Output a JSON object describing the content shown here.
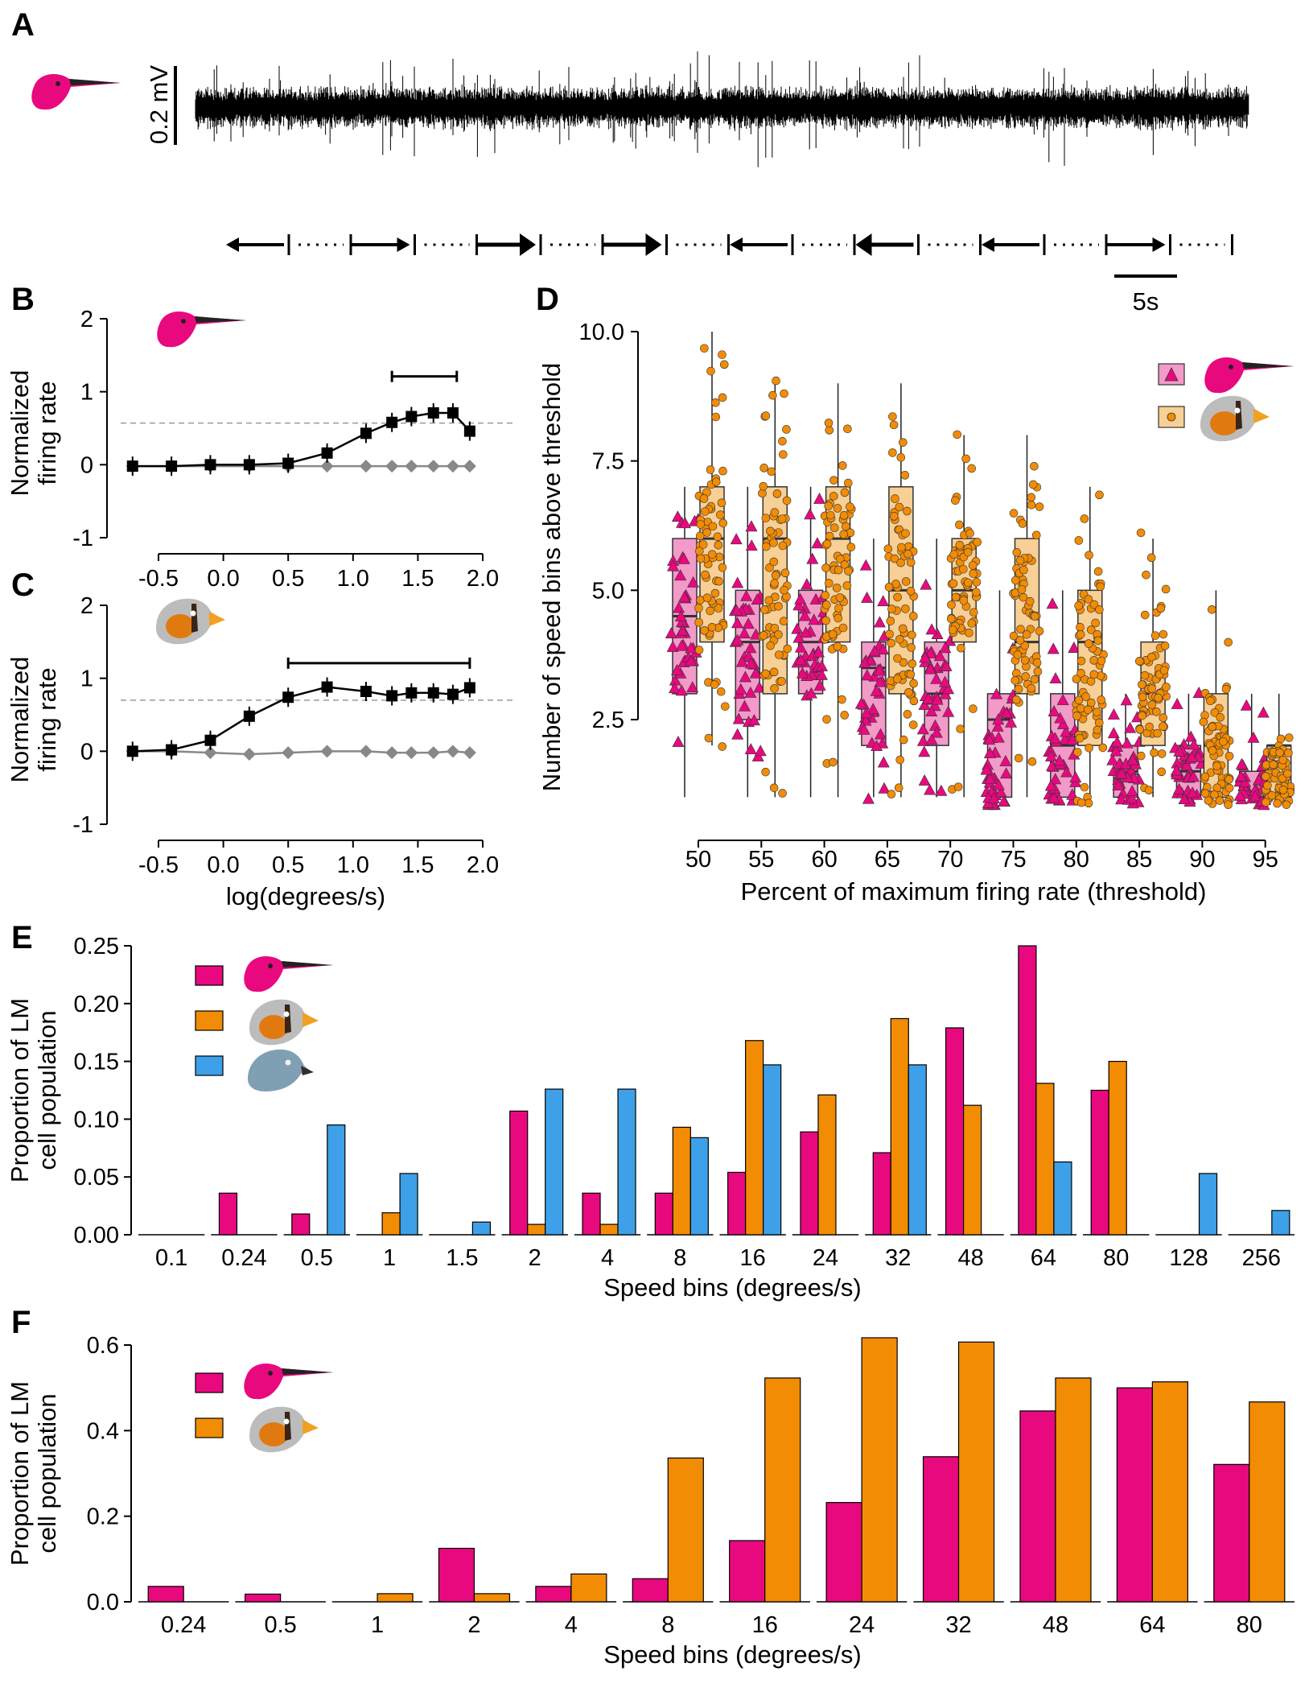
{
  "colors": {
    "hummingbird": "#e8097f",
    "finch": "#f28c05",
    "pigeon": "#3ea0e8",
    "hummingbird_box": "#f29ac8",
    "finch_box": "#f8cf94",
    "black": "#000000",
    "gray": "#888888"
  },
  "icons": {
    "hummingbird": "hummingbird-head-icon",
    "finch": "zebra-finch-head-icon",
    "pigeon": "pigeon-head-icon"
  },
  "chart_data": [
    {
      "panel": "A",
      "type": "line",
      "description_scale_y": "0.2 mV",
      "description_scale_x": "5s",
      "stimulus_directions": [
        "left",
        "right",
        "right",
        "right",
        "left",
        "left",
        "left",
        "right"
      ],
      "stimulus_speeds_relative": [
        1,
        1,
        2,
        2,
        1,
        2,
        1,
        1
      ]
    },
    {
      "panel": "B",
      "type": "line",
      "ylabel": "Normalized\nfiring rate",
      "xlabel": "",
      "xlim": [
        -0.75,
        2.0
      ],
      "ylim": [
        -1,
        2
      ],
      "xticks": [
        "-0.5",
        "0.0",
        "0.5",
        "1.0",
        "1.5",
        "2.0"
      ],
      "yticks": [
        "-1",
        "0",
        "1",
        "2"
      ],
      "threshold_line": 0.57,
      "significance_bar": [
        1.3,
        1.8
      ],
      "series": [
        {
          "species": "hummingbird",
          "kind": "preferred",
          "x": [
            -0.7,
            -0.4,
            -0.1,
            0.2,
            0.5,
            0.8,
            1.1,
            1.3,
            1.45,
            1.62,
            1.77,
            1.9
          ],
          "y": [
            -0.02,
            -0.02,
            0.0,
            0.0,
            0.02,
            0.16,
            0.43,
            0.58,
            0.66,
            0.71,
            0.71,
            0.46
          ]
        },
        {
          "species": "hummingbird",
          "kind": "null",
          "x": [
            -0.7,
            -0.4,
            -0.1,
            0.2,
            0.5,
            0.8,
            1.1,
            1.3,
            1.45,
            1.62,
            1.77,
            1.9
          ],
          "y": [
            -0.02,
            -0.02,
            -0.02,
            -0.02,
            -0.02,
            -0.02,
            -0.02,
            -0.02,
            -0.02,
            -0.02,
            -0.02,
            -0.02
          ]
        }
      ]
    },
    {
      "panel": "C",
      "type": "line",
      "ylabel": "Normalized\nfiring rate",
      "xlabel": "log(degrees/s)",
      "xlim": [
        -0.75,
        2.0
      ],
      "ylim": [
        -1,
        2
      ],
      "xticks": [
        "-0.5",
        "0.0",
        "0.5",
        "1.0",
        "1.5",
        "2.0"
      ],
      "yticks": [
        "-1",
        "0",
        "1",
        "2"
      ],
      "threshold_line": 0.7,
      "significance_bar": [
        0.5,
        1.9
      ],
      "series": [
        {
          "species": "finch",
          "kind": "preferred",
          "x": [
            -0.7,
            -0.4,
            -0.1,
            0.2,
            0.5,
            0.8,
            1.1,
            1.3,
            1.45,
            1.62,
            1.77,
            1.9
          ],
          "y": [
            0.0,
            0.02,
            0.15,
            0.48,
            0.74,
            0.88,
            0.82,
            0.76,
            0.8,
            0.8,
            0.78,
            0.87
          ]
        },
        {
          "species": "finch",
          "kind": "null",
          "x": [
            -0.7,
            -0.4,
            -0.1,
            0.2,
            0.5,
            0.8,
            1.1,
            1.3,
            1.45,
            1.62,
            1.77,
            1.9
          ],
          "y": [
            0.0,
            0.0,
            -0.02,
            -0.04,
            -0.02,
            0.0,
            0.0,
            -0.02,
            -0.02,
            -0.02,
            0.0,
            -0.02
          ]
        }
      ]
    },
    {
      "panel": "D",
      "type": "box",
      "ylabel": "Number of speed bins above threshold",
      "xlabel": "Percent of maximum firing rate (threshold)",
      "categories": [
        "50",
        "55",
        "60",
        "65",
        "70",
        "75",
        "80",
        "85",
        "90",
        "95"
      ],
      "ylim": [
        0.5,
        10.2
      ],
      "yticks": [
        "2.5",
        "5.0",
        "7.5",
        "10.0"
      ],
      "series": [
        {
          "species": "hummingbird",
          "marker": "triangle",
          "q1": [
            3,
            2.5,
            3,
            2,
            2,
            1,
            1,
            1,
            1,
            1
          ],
          "median": [
            4.5,
            4,
            4,
            3.5,
            3,
            2.5,
            2,
            1.5,
            1.5,
            1
          ],
          "q3": [
            6,
            5,
            5,
            4,
            4,
            3,
            3,
            2,
            2,
            1.5
          ],
          "whisk_lo": [
            1,
            1,
            1,
            1,
            1,
            1,
            1,
            1,
            1,
            1
          ],
          "whisk_hi": [
            7,
            7,
            7,
            6,
            6,
            5,
            5,
            3,
            3,
            3
          ]
        },
        {
          "species": "finch",
          "marker": "circle",
          "q1": [
            4,
            3,
            4,
            3,
            4,
            3,
            2,
            2,
            1,
            1
          ],
          "median": [
            6,
            6,
            6,
            5,
            5,
            4,
            4,
            3,
            2,
            2
          ],
          "q3": [
            7,
            7,
            7,
            7,
            6,
            6,
            5,
            4,
            3,
            2
          ],
          "whisk_lo": [
            2,
            1,
            1,
            1,
            1,
            1,
            1,
            1,
            1,
            1
          ],
          "whisk_hi": [
            10,
            9,
            9,
            9,
            8,
            8,
            7,
            6,
            5,
            3
          ]
        }
      ]
    },
    {
      "panel": "E",
      "type": "bar",
      "ylabel": "Proportion of LM\ncell population",
      "xlabel": "Speed bins (degrees/s)",
      "ylim": [
        0,
        0.25
      ],
      "yticks": [
        "0.00",
        "0.05",
        "0.10",
        "0.15",
        "0.20",
        "0.25"
      ],
      "categories": [
        "0.1",
        "0.24",
        "0.5",
        "1",
        "1.5",
        "2",
        "4",
        "8",
        "16",
        "24",
        "32",
        "48",
        "64",
        "80",
        "128",
        "256"
      ],
      "series": [
        {
          "species": "hummingbird",
          "values": [
            0,
            0.036,
            0.018,
            0,
            0,
            0.107,
            0.036,
            0.036,
            0.054,
            0.089,
            0.071,
            0.179,
            0.25,
            0.125,
            0,
            0
          ]
        },
        {
          "species": "finch",
          "values": [
            0,
            0,
            0,
            0.019,
            0,
            0.009,
            0.009,
            0.093,
            0.168,
            0.121,
            0.187,
            0.112,
            0.131,
            0.15,
            0,
            0
          ]
        },
        {
          "species": "pigeon",
          "values": [
            0,
            0,
            0.095,
            0.053,
            0.011,
            0.126,
            0.126,
            0.084,
            0.147,
            0,
            0.147,
            0,
            0.063,
            0,
            0.053,
            0.021
          ]
        }
      ]
    },
    {
      "panel": "F",
      "type": "bar",
      "ylabel": "Proportion of LM\ncell population",
      "xlabel": "Speed bins (degrees/s)",
      "ylim": [
        0,
        0.62
      ],
      "yticks": [
        "0.0",
        "0.2",
        "0.4",
        "0.6"
      ],
      "categories": [
        "0.24",
        "0.5",
        "1",
        "2",
        "4",
        "8",
        "16",
        "24",
        "32",
        "48",
        "64",
        "80"
      ],
      "series": [
        {
          "species": "hummingbird",
          "values": [
            0.036,
            0.018,
            0,
            0.125,
            0.036,
            0.054,
            0.143,
            0.232,
            0.339,
            0.446,
            0.5,
            0.321
          ]
        },
        {
          "species": "finch",
          "values": [
            0,
            0,
            0.019,
            0.019,
            0.065,
            0.336,
            0.523,
            0.617,
            0.607,
            0.523,
            0.514,
            0.467
          ]
        }
      ]
    }
  ],
  "panel_labels": [
    "A",
    "B",
    "C",
    "D",
    "E",
    "F"
  ]
}
